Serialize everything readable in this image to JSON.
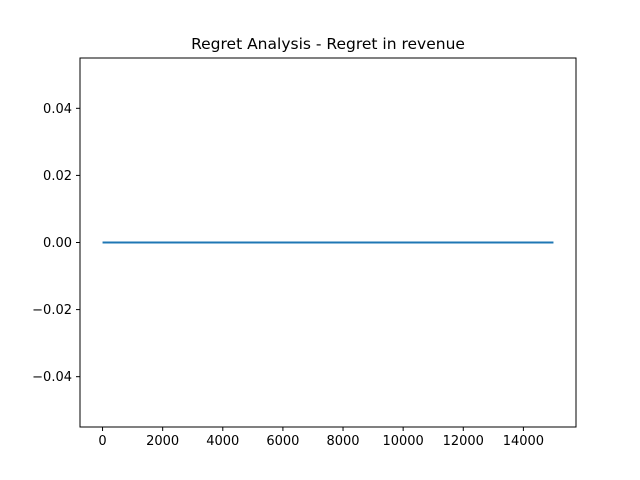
{
  "chart_data": {
    "type": "line",
    "title": "Regret Analysis - Regret in revenue",
    "xlabel": "",
    "ylabel": "",
    "xlim": [
      -750,
      15750
    ],
    "ylim": [
      -0.055,
      0.055
    ],
    "x_ticks": [
      0,
      2000,
      4000,
      6000,
      8000,
      10000,
      12000,
      14000
    ],
    "x_tick_labels": [
      "0",
      "2000",
      "4000",
      "6000",
      "8000",
      "10000",
      "12000",
      "14000"
    ],
    "y_ticks": [
      0.04,
      0.02,
      0.0,
      -0.02,
      -0.04
    ],
    "y_tick_labels": [
      "0.04",
      "0.02",
      "0.00",
      "−0.02",
      "−0.04"
    ],
    "grid": false,
    "series": [
      {
        "color": "#1f77b4",
        "x": [
          0,
          15000
        ],
        "y": [
          0.0,
          0.0
        ]
      }
    ]
  }
}
